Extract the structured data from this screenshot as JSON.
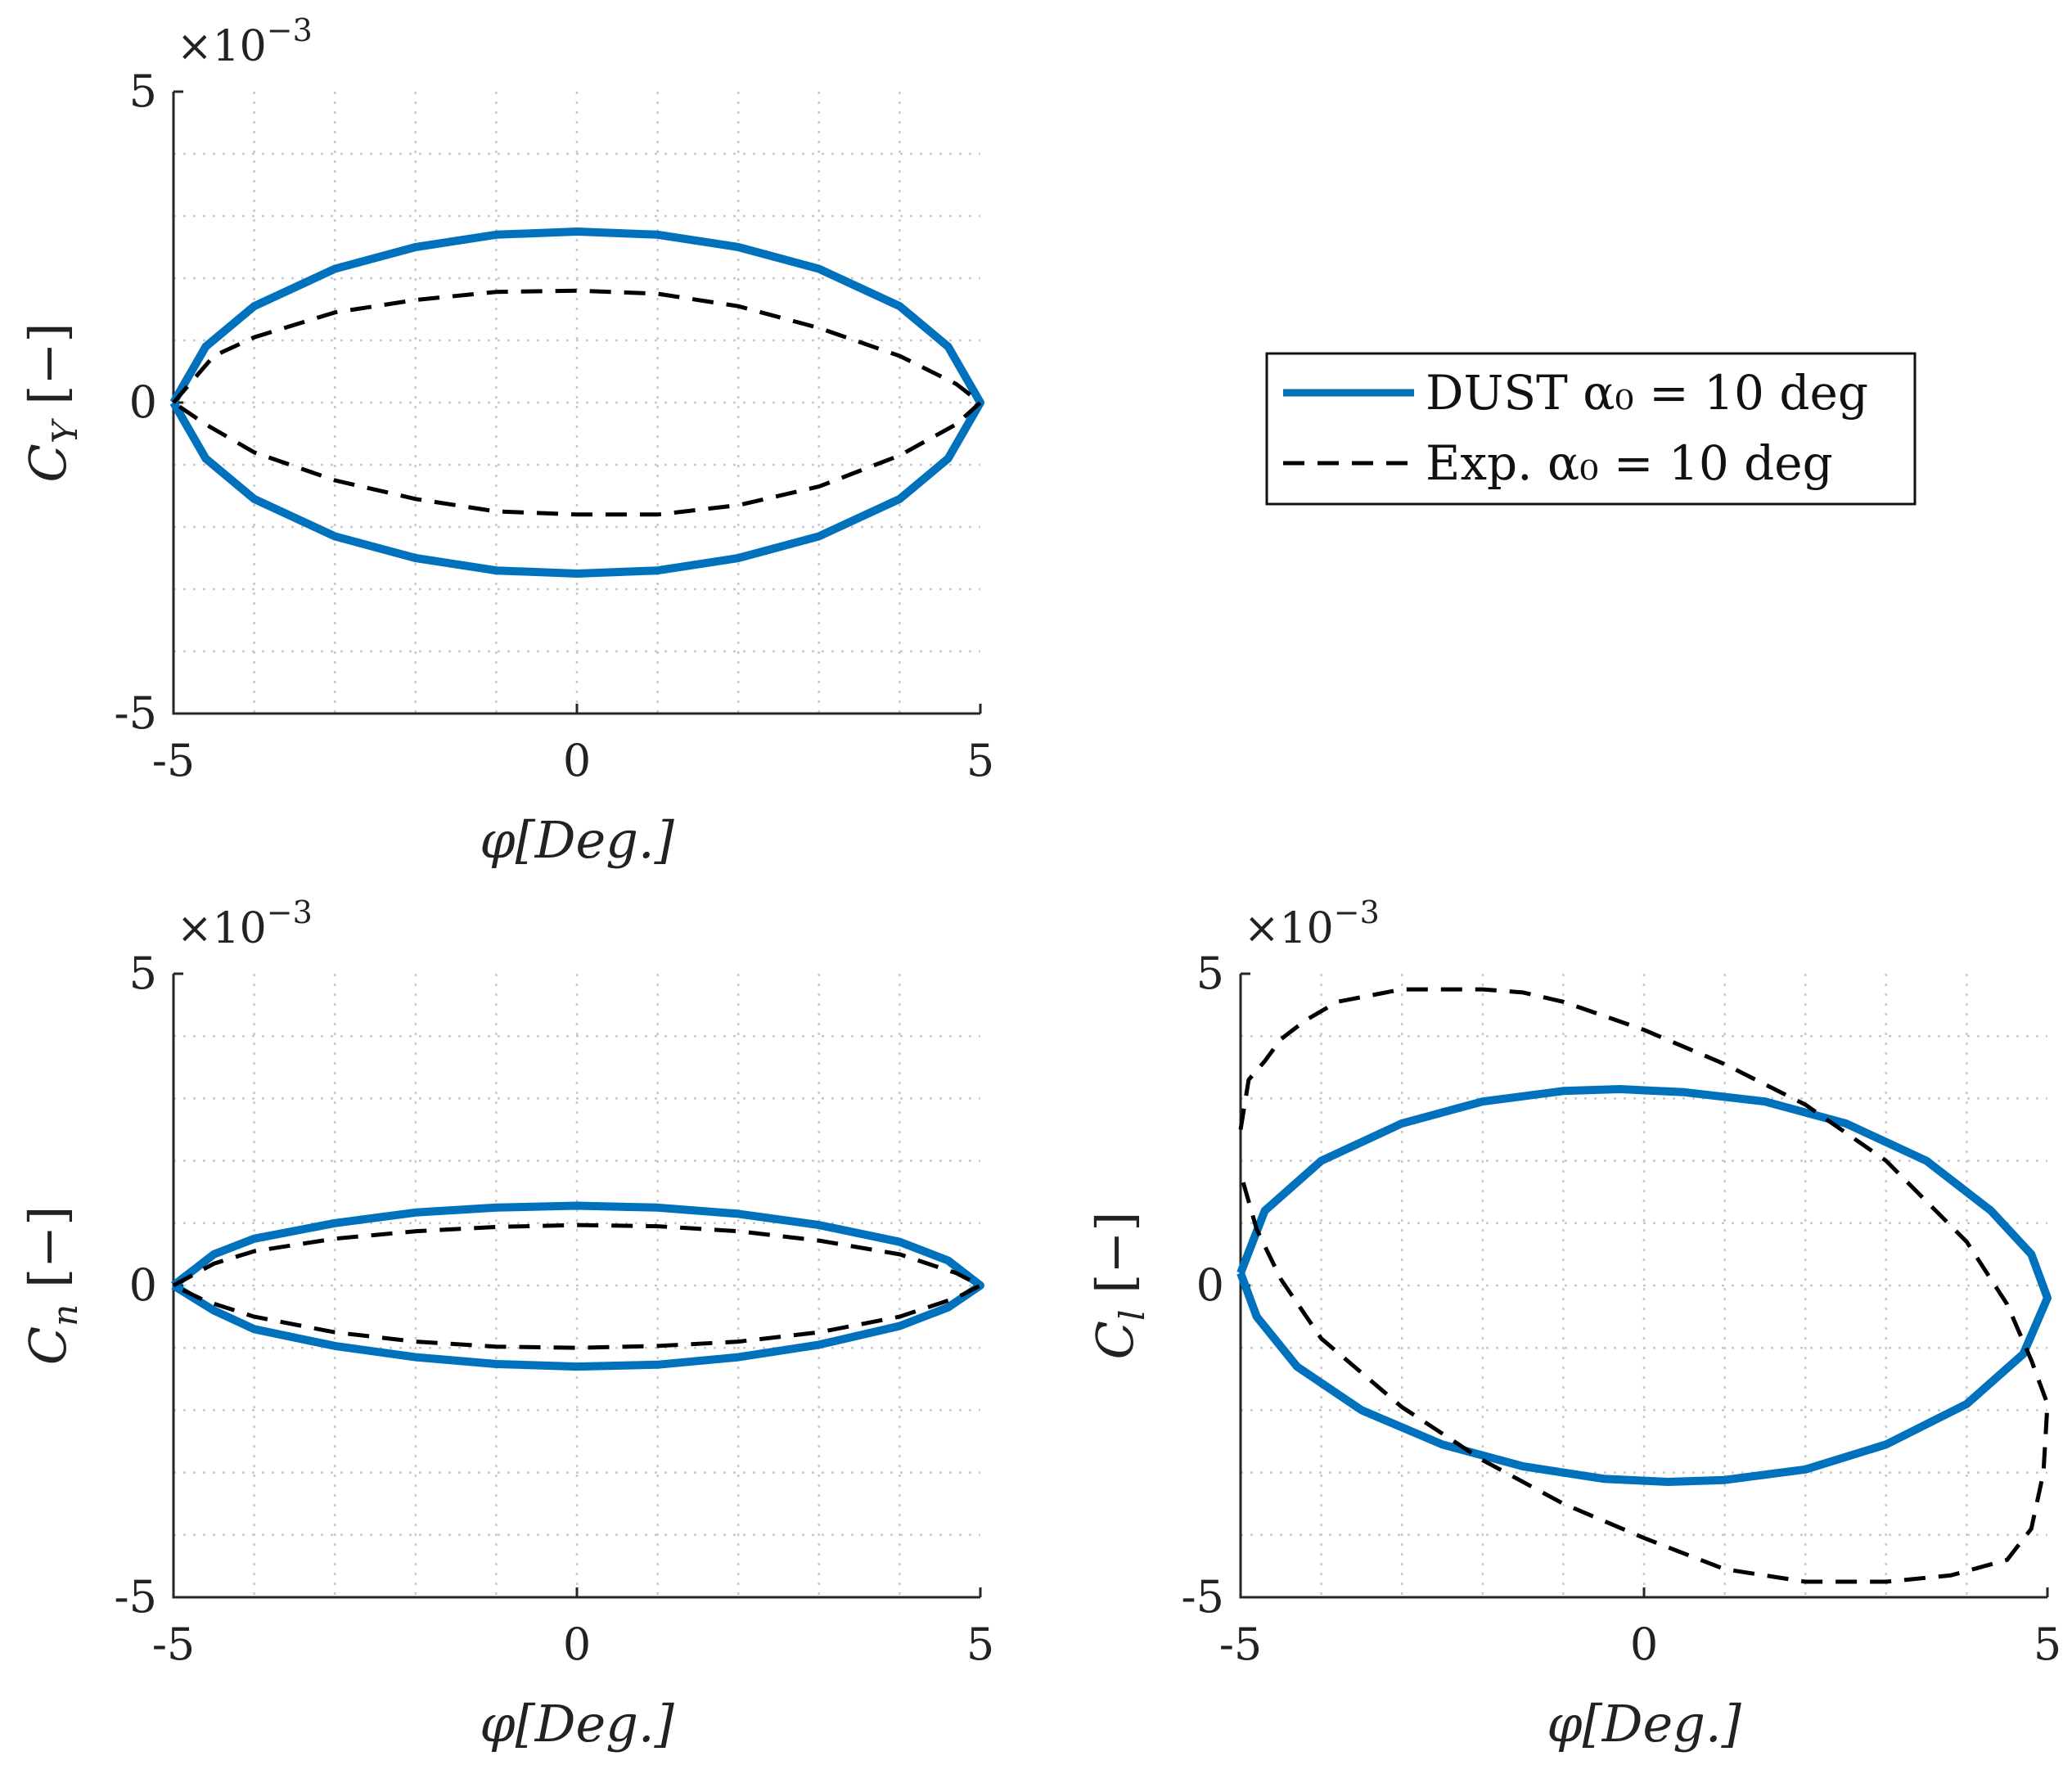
{
  "figure": {
    "legend": {
      "entries": [
        {
          "label": "DUST α₀ = 10 deg",
          "series": "dust"
        },
        {
          "label": "Exp. α₀ = 10 deg",
          "series": "exp"
        }
      ]
    }
  },
  "colors": {
    "dust": "#0072BD",
    "exp": "#000000",
    "grid": "#c8c8c8",
    "axis": "#262626"
  },
  "chart_data": [
    {
      "id": "cy",
      "type": "line",
      "xlabel": "φ[Deg.]",
      "ylabel": "C_Y [−]",
      "ylabel_main": "C",
      "ylabel_sub": "Y",
      "ylabel_unit": "[−]",
      "xlim": [
        -5,
        5
      ],
      "ylim": [
        -5,
        5
      ],
      "y_scale_label": "×10",
      "y_scale_exp": "−3",
      "x_ticks": [
        -5,
        0,
        5
      ],
      "y_ticks": [
        -5,
        0,
        5
      ],
      "x_tick_labels": [
        "-5",
        "0",
        "5"
      ],
      "y_tick_labels": [
        "-5",
        "0",
        "5"
      ],
      "grid": true,
      "series": [
        {
          "name": "DUST",
          "points": [
            [
              -5,
              0
            ],
            [
              -4.6,
              0.9
            ],
            [
              -4,
              1.55
            ],
            [
              -3,
              2.15
            ],
            [
              -2,
              2.5
            ],
            [
              -1,
              2.7
            ],
            [
              0,
              2.75
            ],
            [
              1,
              2.7
            ],
            [
              2,
              2.5
            ],
            [
              3,
              2.15
            ],
            [
              4,
              1.55
            ],
            [
              4.6,
              0.9
            ],
            [
              5,
              0
            ],
            [
              4.6,
              -0.9
            ],
            [
              4,
              -1.55
            ],
            [
              3,
              -2.15
            ],
            [
              2,
              -2.5
            ],
            [
              1,
              -2.7
            ],
            [
              0,
              -2.75
            ],
            [
              -1,
              -2.7
            ],
            [
              -2,
              -2.5
            ],
            [
              -3,
              -2.15
            ],
            [
              -4,
              -1.55
            ],
            [
              -4.6,
              -0.9
            ],
            [
              -5,
              0
            ]
          ]
        },
        {
          "name": "Exp.",
          "points": [
            [
              -5,
              0
            ],
            [
              -4.5,
              0.75
            ],
            [
              -4,
              1.05
            ],
            [
              -3,
              1.45
            ],
            [
              -2,
              1.65
            ],
            [
              -1,
              1.78
            ],
            [
              0,
              1.8
            ],
            [
              1,
              1.75
            ],
            [
              2,
              1.55
            ],
            [
              3,
              1.2
            ],
            [
              4,
              0.75
            ],
            [
              4.7,
              0.3
            ],
            [
              5,
              0
            ],
            [
              4.7,
              -0.35
            ],
            [
              4,
              -0.85
            ],
            [
              3,
              -1.35
            ],
            [
              2,
              -1.65
            ],
            [
              1,
              -1.8
            ],
            [
              0,
              -1.8
            ],
            [
              -1,
              -1.75
            ],
            [
              -2,
              -1.55
            ],
            [
              -3,
              -1.25
            ],
            [
              -4,
              -0.8
            ],
            [
              -4.6,
              -0.35
            ],
            [
              -5,
              0
            ]
          ]
        }
      ]
    },
    {
      "id": "cn",
      "type": "line",
      "xlabel": "φ[Deg.]",
      "ylabel": "C_n [−]",
      "ylabel_main": "C",
      "ylabel_sub": "n",
      "ylabel_unit": "[−]",
      "xlim": [
        -5,
        5
      ],
      "ylim": [
        -5,
        5
      ],
      "y_scale_label": "×10",
      "y_scale_exp": "−3",
      "x_ticks": [
        -5,
        0,
        5
      ],
      "y_ticks": [
        -5,
        0,
        5
      ],
      "x_tick_labels": [
        "-5",
        "0",
        "5"
      ],
      "y_tick_labels": [
        "-5",
        "0",
        "5"
      ],
      "grid": true,
      "series": [
        {
          "name": "DUST",
          "points": [
            [
              -5,
              0
            ],
            [
              -4.5,
              0.5
            ],
            [
              -4,
              0.75
            ],
            [
              -3,
              1
            ],
            [
              -2,
              1.17
            ],
            [
              -1,
              1.25
            ],
            [
              0,
              1.28
            ],
            [
              1,
              1.25
            ],
            [
              2,
              1.15
            ],
            [
              3,
              0.97
            ],
            [
              4,
              0.7
            ],
            [
              4.6,
              0.4
            ],
            [
              5,
              0
            ],
            [
              4.6,
              -0.35
            ],
            [
              4,
              -0.65
            ],
            [
              3,
              -0.95
            ],
            [
              2,
              -1.15
            ],
            [
              1,
              -1.27
            ],
            [
              0,
              -1.3
            ],
            [
              -1,
              -1.26
            ],
            [
              -2,
              -1.15
            ],
            [
              -3,
              -0.97
            ],
            [
              -4,
              -0.7
            ],
            [
              -4.5,
              -0.4
            ],
            [
              -5,
              0
            ]
          ]
        },
        {
          "name": "Exp.",
          "points": [
            [
              -5,
              0
            ],
            [
              -4.5,
              0.35
            ],
            [
              -4,
              0.55
            ],
            [
              -3,
              0.75
            ],
            [
              -2,
              0.87
            ],
            [
              -1,
              0.94
            ],
            [
              0,
              0.97
            ],
            [
              1,
              0.95
            ],
            [
              2,
              0.87
            ],
            [
              3,
              0.72
            ],
            [
              4,
              0.5
            ],
            [
              4.7,
              0.2
            ],
            [
              5,
              0
            ],
            [
              4.7,
              -0.2
            ],
            [
              4,
              -0.5
            ],
            [
              3,
              -0.75
            ],
            [
              2,
              -0.9
            ],
            [
              1,
              -0.97
            ],
            [
              0,
              -1
            ],
            [
              -1,
              -0.98
            ],
            [
              -2,
              -0.9
            ],
            [
              -3,
              -0.75
            ],
            [
              -4,
              -0.5
            ],
            [
              -4.6,
              -0.25
            ],
            [
              -5,
              0
            ]
          ]
        }
      ]
    },
    {
      "id": "cl",
      "type": "line",
      "xlabel": "φ[Deg.]",
      "ylabel": "C_l [−]",
      "ylabel_main": "C",
      "ylabel_sub": "l",
      "ylabel_unit": "[−]",
      "xlim": [
        -5,
        5
      ],
      "ylim": [
        -5,
        5
      ],
      "y_scale_label": "×10",
      "y_scale_exp": "−3",
      "x_ticks": [
        -5,
        0,
        5
      ],
      "y_ticks": [
        -5,
        0,
        5
      ],
      "x_tick_labels": [
        "-5",
        "0",
        "5"
      ],
      "y_tick_labels": [
        "-5",
        "0",
        "5"
      ],
      "grid": true,
      "series": [
        {
          "name": "DUST",
          "points": [
            [
              -5,
              0.2
            ],
            [
              -4.7,
              1.2
            ],
            [
              -4,
              2
            ],
            [
              -3,
              2.6
            ],
            [
              -2,
              2.95
            ],
            [
              -1,
              3.12
            ],
            [
              -0.3,
              3.15
            ],
            [
              0.5,
              3.1
            ],
            [
              1.5,
              2.95
            ],
            [
              2.5,
              2.6
            ],
            [
              3.5,
              2
            ],
            [
              4.3,
              1.2
            ],
            [
              4.8,
              0.5
            ],
            [
              5,
              -0.2
            ],
            [
              4.7,
              -1.1
            ],
            [
              4,
              -1.9
            ],
            [
              3,
              -2.55
            ],
            [
              2,
              -2.95
            ],
            [
              1,
              -3.12
            ],
            [
              0.3,
              -3.15
            ],
            [
              -0.5,
              -3.1
            ],
            [
              -1.5,
              -2.9
            ],
            [
              -2.5,
              -2.55
            ],
            [
              -3.5,
              -2
            ],
            [
              -4.3,
              -1.3
            ],
            [
              -4.8,
              -0.5
            ],
            [
              -5,
              0.2
            ]
          ]
        },
        {
          "name": "Exp.",
          "points": [
            [
              -5,
              2.5
            ],
            [
              -4.9,
              3.3
            ],
            [
              -4.7,
              3.6
            ],
            [
              -4.5,
              3.95
            ],
            [
              -4.2,
              4.25
            ],
            [
              -3.8,
              4.55
            ],
            [
              -3,
              4.75
            ],
            [
              -2,
              4.75
            ],
            [
              -1.5,
              4.7
            ],
            [
              -1,
              4.55
            ],
            [
              0,
              4.1
            ],
            [
              1,
              3.55
            ],
            [
              2,
              2.9
            ],
            [
              3,
              2
            ],
            [
              4,
              0.7
            ],
            [
              4.5,
              -0.3
            ],
            [
              4.8,
              -1.2
            ],
            [
              5,
              -1.9
            ],
            [
              4.95,
              -3
            ],
            [
              4.8,
              -3.9
            ],
            [
              4.5,
              -4.4
            ],
            [
              3.8,
              -4.65
            ],
            [
              3,
              -4.75
            ],
            [
              2,
              -4.75
            ],
            [
              1,
              -4.55
            ],
            [
              0,
              -4.05
            ],
            [
              -1,
              -3.5
            ],
            [
              -2,
              -2.8
            ],
            [
              -3,
              -1.95
            ],
            [
              -4,
              -0.85
            ],
            [
              -4.5,
              0.1
            ],
            [
              -4.8,
              0.9
            ],
            [
              -5,
              1.8
            ]
          ]
        }
      ]
    }
  ]
}
